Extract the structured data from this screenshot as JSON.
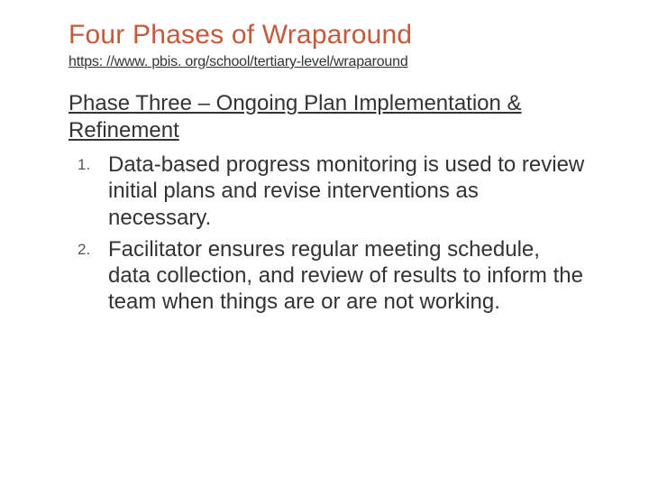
{
  "slide": {
    "title": "Four Phases of Wraparound",
    "subtitle_link": "https: //www. pbis. org/school/tertiary-level/wraparound",
    "phase_heading": "Phase Three – Ongoing Plan Implementation & Refinement",
    "items": [
      "Data-based progress monitoring is used to review initial plans and revise interventions as necessary.",
      "Facilitator ensures regular meeting schedule, data collection, and review of results to inform the team when things are or are not working."
    ]
  },
  "colors": {
    "title_color": "#c55a3b",
    "text_color": "#333333",
    "background": "#ffffff"
  },
  "typography": {
    "title_fontsize": 30,
    "subtitle_fontsize": 16,
    "heading_fontsize": 24,
    "body_fontsize": 24,
    "number_fontsize": 17,
    "font_family": "Arial"
  }
}
